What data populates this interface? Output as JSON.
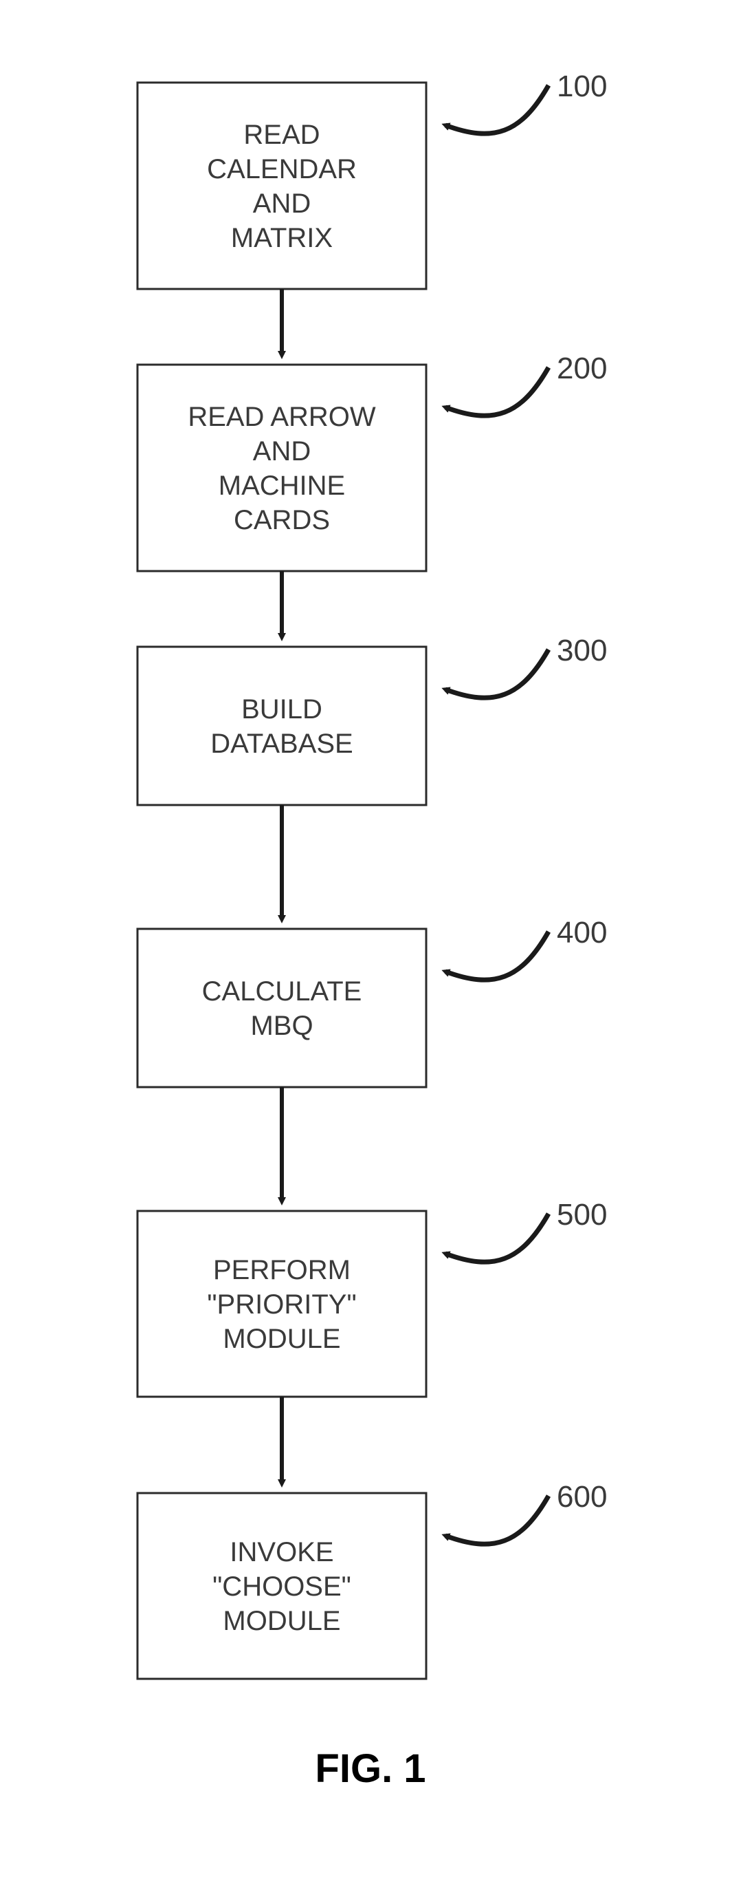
{
  "figure": {
    "caption": "FIG. 1",
    "caption_fontsize": 58,
    "background": "#ffffff",
    "box_stroke": "#2b2b2b",
    "box_stroke_width": 3,
    "box_fill": "#ffffff",
    "arrow_stroke": "#1a1a1a",
    "arrow_stroke_width": 6,
    "pointer_stroke": "#1a1a1a",
    "pointer_stroke_width": 7,
    "box_fontsize": 40,
    "label_fontsize": 44
  },
  "steps": [
    {
      "id": "s100",
      "label": "100",
      "lines": [
        "READ",
        "CALENDAR",
        "AND",
        "MATRIX"
      ]
    },
    {
      "id": "s200",
      "label": "200",
      "lines": [
        "READ ARROW",
        "AND",
        "MACHINE",
        "CARDS"
      ]
    },
    {
      "id": "s300",
      "label": "300",
      "lines": [
        "BUILD",
        "DATABASE"
      ]
    },
    {
      "id": "s400",
      "label": "400",
      "lines": [
        "CALCULATE",
        "MBQ"
      ]
    },
    {
      "id": "s500",
      "label": "500",
      "lines": [
        "PERFORM",
        "\"PRIORITY\"",
        "MODULE"
      ]
    },
    {
      "id": "s600",
      "label": "600",
      "lines": [
        "INVOKE",
        "\"CHOOSE\"",
        "MODULE"
      ]
    }
  ]
}
